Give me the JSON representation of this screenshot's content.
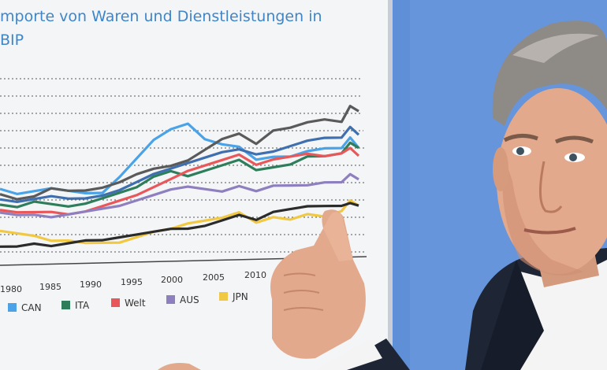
{
  "poster": {
    "title_line1": "mporte von Waren und Dienstleistungen in",
    "title_line2": "BIP",
    "title_color": "#3f86c8"
  },
  "chart_data": {
    "type": "line",
    "title": "mporte von Waren und Dienstleistungen in BIP",
    "x_tick_labels": [
      "1980",
      "1985",
      "1990",
      "1995",
      "2000",
      "2005",
      "2010"
    ],
    "grid": true,
    "legend_position": "bottom",
    "x": [
      1978,
      1980,
      1982,
      1984,
      1986,
      1988,
      1990,
      1992,
      1994,
      1996,
      1998,
      2000,
      2002,
      2004,
      2006,
      2008,
      2010,
      2012,
      2014,
      2016,
      2018,
      2019,
      2020
    ],
    "series": [
      {
        "name": "CAN",
        "color": "#4aa3e6",
        "values": [
          44,
          42,
          43,
          44,
          43,
          42,
          42,
          48,
          55,
          62,
          66,
          68,
          62,
          60,
          59,
          54,
          55,
          55,
          57,
          58,
          58,
          62,
          58
        ]
      },
      {
        "name": "ITA",
        "color": "#2e7d5b",
        "values": [
          38,
          37,
          39,
          38,
          37,
          38,
          40,
          42,
          44,
          48,
          50,
          48,
          50,
          52,
          54,
          50,
          51,
          52,
          55,
          55,
          56,
          60,
          58
        ]
      },
      {
        "name": "Welt",
        "color": "#e8585b",
        "values": [
          36,
          35,
          35,
          35,
          34,
          35,
          37,
          39,
          41,
          44,
          47,
          50,
          52,
          54,
          56,
          52,
          54,
          55,
          56,
          55,
          56,
          58,
          55
        ]
      },
      {
        "name": "AUS",
        "color": "#8e7fbf",
        "values": [
          35,
          34,
          34,
          33,
          34,
          35,
          36,
          37,
          39,
          41,
          43,
          44,
          43,
          42,
          44,
          42,
          44,
          44,
          44,
          45,
          45,
          48,
          46
        ]
      },
      {
        "name": "JPN",
        "color": "#f1c842",
        "values": [
          28,
          27,
          26,
          24,
          24,
          23,
          23,
          23,
          25,
          27,
          28,
          30,
          31,
          32,
          34,
          30,
          32,
          31,
          33,
          32,
          34,
          38,
          36
        ]
      },
      {
        "name": "",
        "color": "#5a5a5a",
        "values": [
          42,
          40,
          41,
          44,
          43,
          43,
          44,
          46,
          49,
          51,
          52,
          54,
          58,
          62,
          64,
          60,
          65,
          66,
          68,
          69,
          68,
          74,
          72
        ]
      },
      {
        "name": "",
        "color": "#3f6fae",
        "values": [
          40,
          39,
          40,
          41,
          40,
          40,
          41,
          43,
          46,
          49,
          51,
          53,
          55,
          57,
          58,
          56,
          57,
          59,
          61,
          62,
          62,
          66,
          63
        ]
      },
      {
        "name": "",
        "color": "#2b2b2b",
        "values": [
          22,
          22,
          23,
          22,
          23,
          24,
          24,
          25,
          26,
          27,
          28,
          28,
          29,
          31,
          33,
          31,
          34,
          35,
          36,
          36,
          36,
          37,
          36
        ]
      }
    ]
  },
  "legend": [
    {
      "label": "CAN",
      "color": "#4aa3e6"
    },
    {
      "label": "ITA",
      "color": "#2e7d5b"
    },
    {
      "label": "Welt",
      "color": "#e8585b"
    },
    {
      "label": "AUS",
      "color": "#8e7fbf"
    },
    {
      "label": "JPN",
      "color": "#f1c842"
    }
  ],
  "scene": {
    "backdrop_color": "#5f8fd6",
    "poster_color": "#f4f5f7",
    "skin_color": "#e2a98c",
    "suit_color": "#1e2535",
    "shirt_color": "#f4f4f4"
  }
}
